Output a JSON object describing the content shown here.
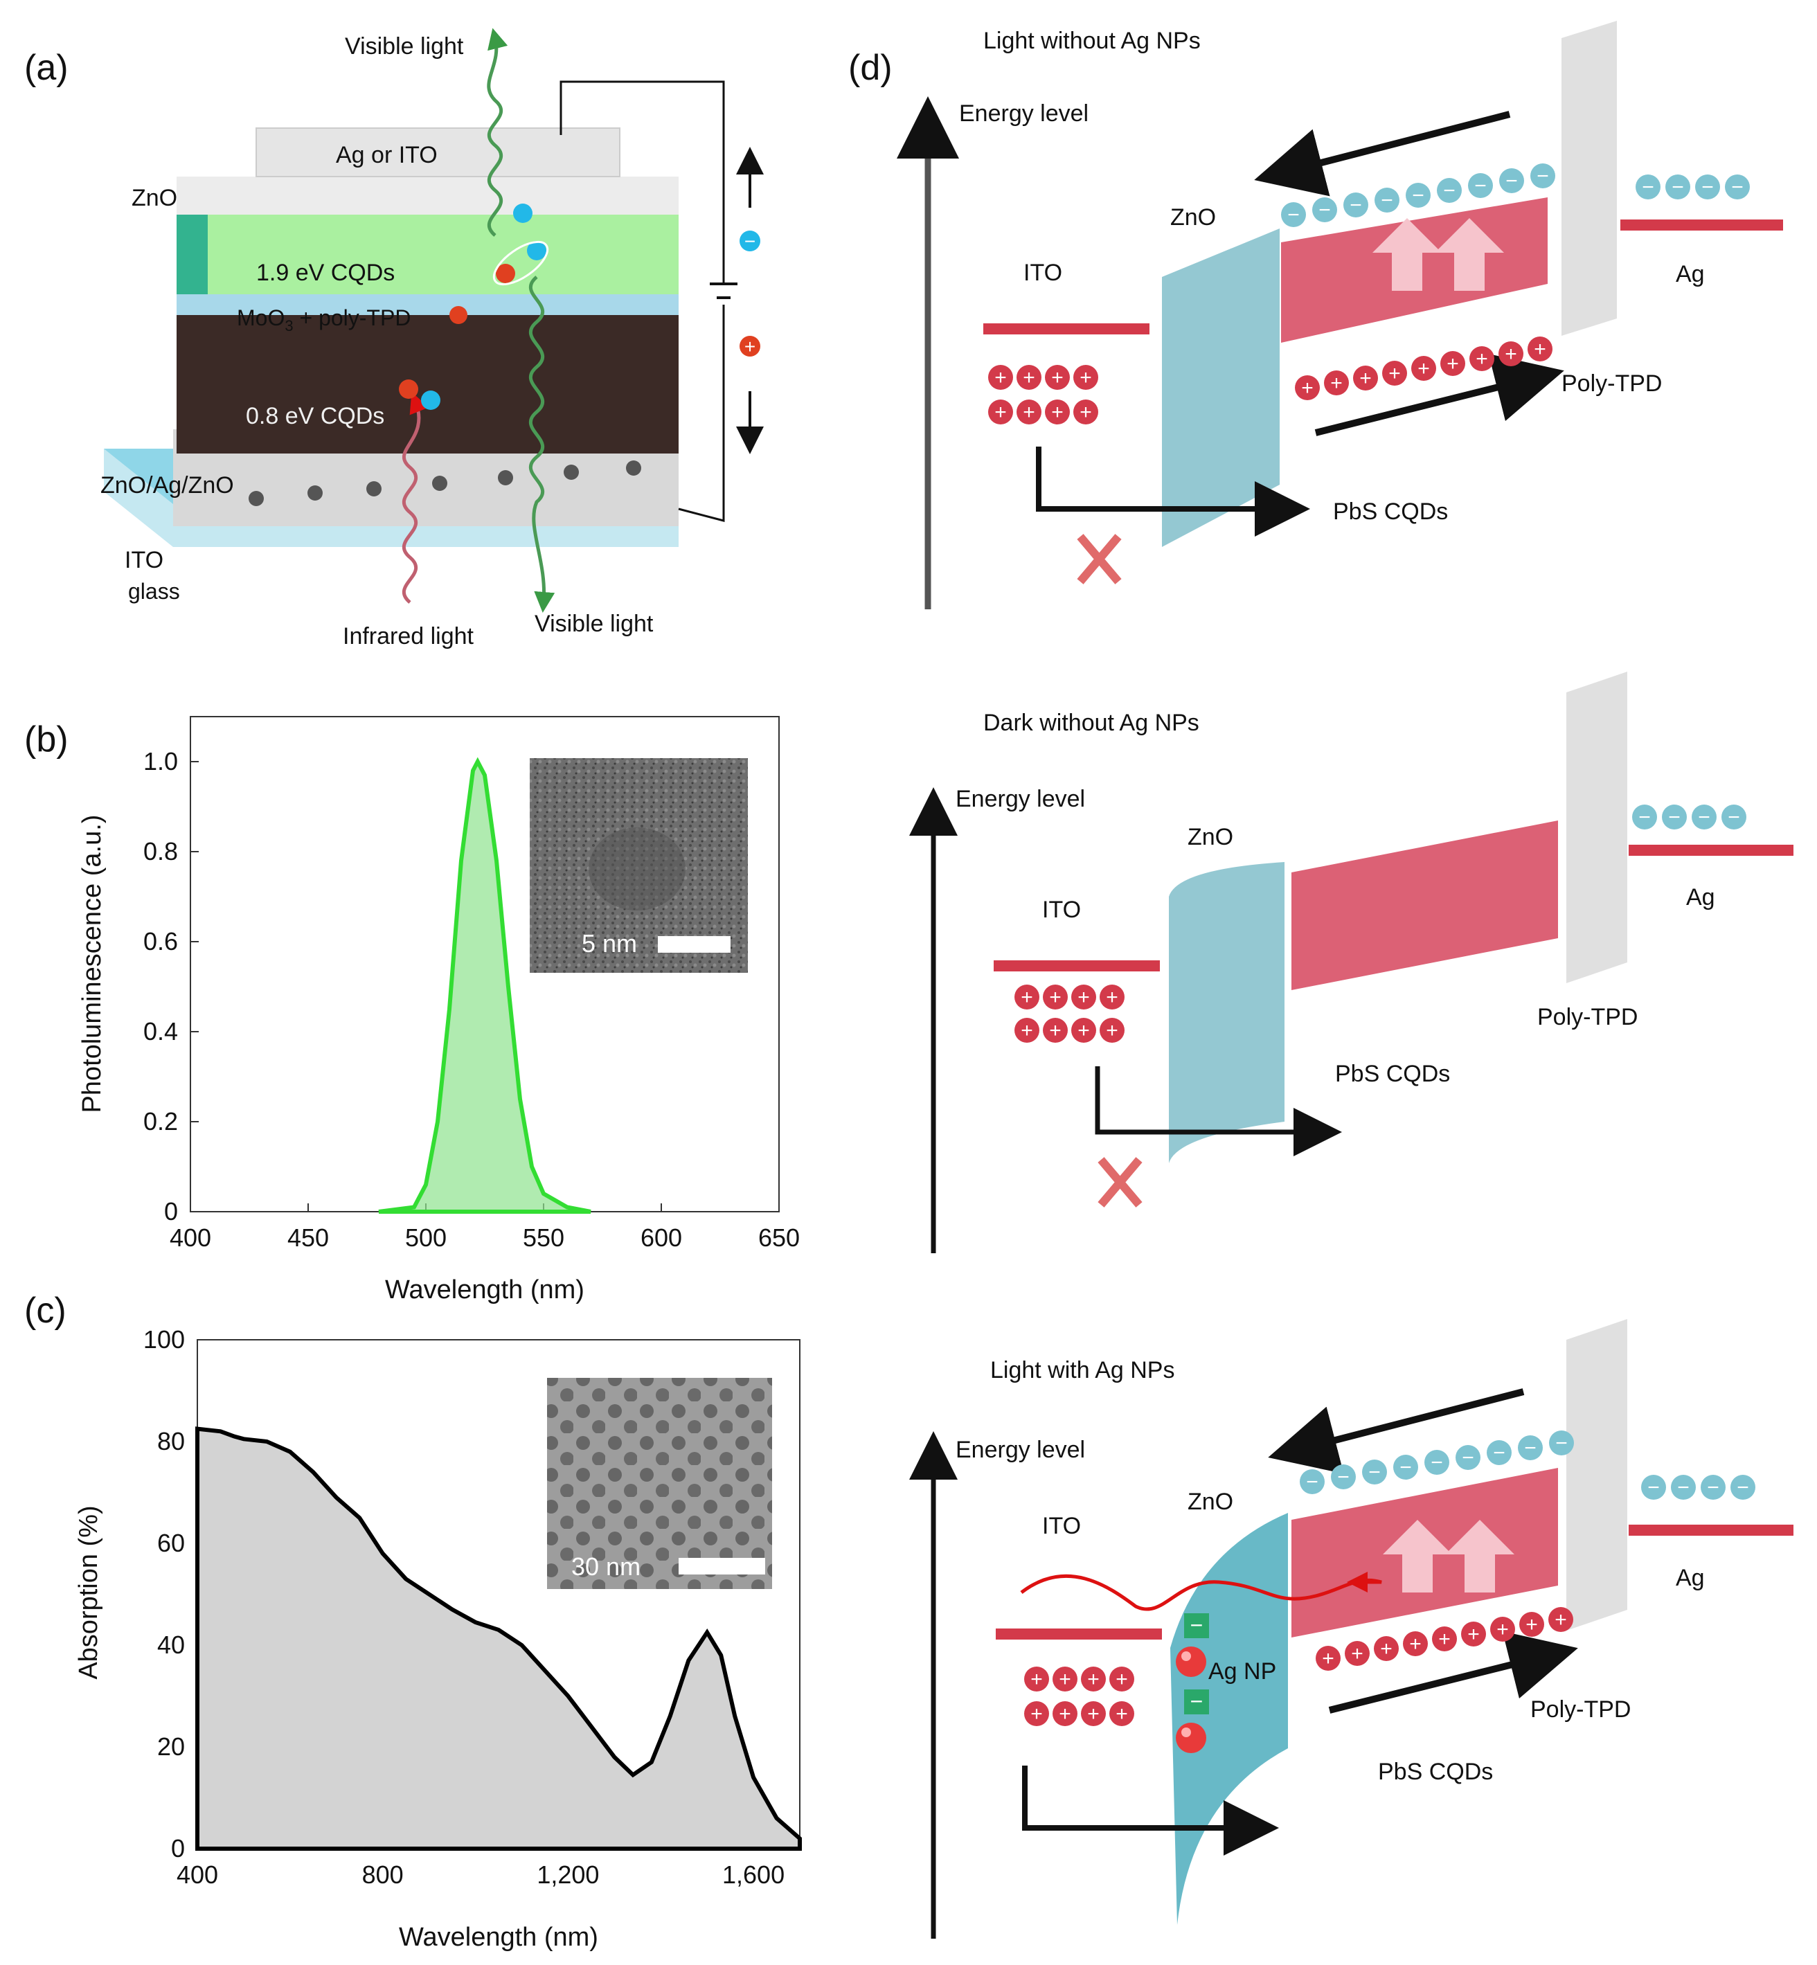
{
  "panels": {
    "a": "(a)",
    "b": "(b)",
    "c": "(c)",
    "d": "(d)"
  },
  "device": {
    "layers": [
      "Ag or ITO",
      "ZnO",
      "1.9 eV CQDs",
      "MoO3 + poly-TPD",
      "0.8 eV CQDs",
      "ZnO/Ag/ZnO",
      "ITO",
      "glass"
    ],
    "moo3_label": "MoO",
    "moo3_sub": "3",
    "moo3_rest": " + poly-TPD",
    "light_top": "Visible light",
    "light_bottom_in": "Infrared light",
    "light_bottom_out": "Visible light"
  },
  "charge_symbols": {
    "electron": "−",
    "hole": "+"
  },
  "chart_b": {
    "chart_data": {
      "type": "area",
      "xlabel": "Wavelength (nm)",
      "ylabel": "Photoluminescence (a.u.)",
      "xlim": [
        400,
        650
      ],
      "ylim": [
        0,
        1.1
      ],
      "xticks": [
        "400",
        "450",
        "500",
        "550",
        "600",
        "650"
      ],
      "yticks": [
        "0",
        "0.2",
        "0.4",
        "0.6",
        "0.8",
        "1.0"
      ],
      "series": [
        {
          "x": [
            480,
            495,
            500,
            505,
            510,
            515,
            520,
            522,
            525,
            530,
            535,
            540,
            545,
            550,
            560,
            570
          ],
          "y": [
            0,
            0.01,
            0.06,
            0.2,
            0.45,
            0.78,
            0.98,
            1.0,
            0.97,
            0.78,
            0.5,
            0.25,
            0.1,
            0.04,
            0.01,
            0
          ]
        }
      ],
      "color": "#33cc33",
      "inset_scale": "5 nm"
    }
  },
  "chart_c": {
    "chart_data": {
      "type": "area",
      "xlabel": "Wavelength (nm)",
      "ylabel": "Absorption (%)",
      "xlim": [
        400,
        1700
      ],
      "ylim": [
        0,
        100
      ],
      "xticks": [
        "400",
        "800",
        "1,200",
        "1,600"
      ],
      "yticks": [
        "0",
        "20",
        "40",
        "60",
        "80",
        "100"
      ],
      "series": [
        {
          "x": [
            400,
            450,
            480,
            500,
            550,
            600,
            650,
            700,
            750,
            800,
            850,
            900,
            950,
            1000,
            1050,
            1100,
            1150,
            1200,
            1250,
            1300,
            1340,
            1380,
            1420,
            1460,
            1500,
            1530,
            1560,
            1600,
            1650,
            1700
          ],
          "y": [
            82.5,
            82,
            81,
            80.5,
            80,
            78,
            74,
            69,
            65,
            58,
            53,
            50,
            47,
            44.5,
            43,
            40,
            35,
            30,
            24,
            18,
            14.5,
            17,
            26,
            37,
            42.5,
            38,
            26,
            14,
            6,
            2
          ]
        }
      ],
      "color": "#d3d3d3",
      "inset_scale": "30 nm"
    }
  },
  "bands": {
    "top": {
      "title": "Light without Ag NPs",
      "energy": "Energy level",
      "ito": "ITO",
      "zno": "ZnO",
      "ag": "Ag",
      "polytpd": "Poly-TPD",
      "pbs": "PbS CQDs"
    },
    "mid": {
      "title": "Dark without Ag NPs",
      "energy": "Energy level",
      "ito": "ITO",
      "zno": "ZnO",
      "ag": "Ag",
      "polytpd": "Poly-TPD",
      "pbs": "PbS CQDs"
    },
    "bot": {
      "title": "Light with Ag NPs",
      "energy": "Energy level",
      "ito": "ITO",
      "zno": "ZnO",
      "ag": "Ag",
      "polytpd": "Poly-TPD",
      "pbs": "PbS CQDs",
      "agnp": "Ag NP"
    }
  }
}
